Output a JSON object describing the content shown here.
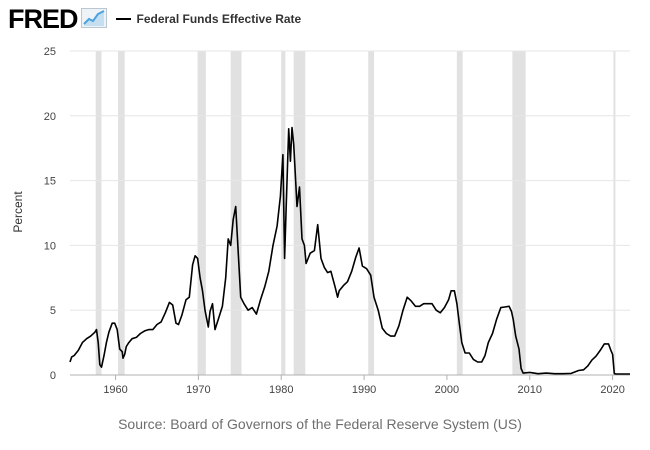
{
  "brand": {
    "name": "FRED",
    "logo_icon": "trend-graph-icon"
  },
  "source_text": "Source: Board of Governors of the Federal Reserve System (US)",
  "colors": {
    "series": "#000000",
    "recession": "#e1e1e1",
    "grid": "#e6e6e6",
    "accent": "#4aa3df"
  },
  "chart_data": {
    "type": "line",
    "title": "",
    "xlabel": "",
    "ylabel": "Percent",
    "xlim": [
      1954.5,
      2022.1
    ],
    "ylim": [
      0,
      25
    ],
    "yticks": [
      0,
      5,
      10,
      15,
      20,
      25
    ],
    "xticks": [
      1960,
      1970,
      1980,
      1990,
      2000,
      2010,
      2020
    ],
    "grid": "horizontal",
    "legend": "top-left",
    "recessions": [
      [
        1957.6,
        1958.3
      ],
      [
        1960.3,
        1961.1
      ],
      [
        1969.9,
        1970.9
      ],
      [
        1973.9,
        1975.2
      ],
      [
        1980.0,
        1980.5
      ],
      [
        1981.5,
        1982.9
      ],
      [
        1990.5,
        1991.2
      ],
      [
        2001.2,
        2001.9
      ],
      [
        2007.9,
        2009.5
      ],
      [
        2020.1,
        2020.3
      ]
    ],
    "series": [
      {
        "name": "Federal Funds Effective Rate",
        "x": [
          1954.5,
          1954.7,
          1955.0,
          1955.5,
          1956.0,
          1956.5,
          1957.0,
          1957.5,
          1957.7,
          1957.9,
          1958.1,
          1958.3,
          1958.6,
          1958.9,
          1959.2,
          1959.6,
          1959.9,
          1960.2,
          1960.5,
          1960.8,
          1960.9,
          1961.1,
          1961.3,
          1961.6,
          1962.0,
          1962.5,
          1963.0,
          1963.5,
          1964.0,
          1964.5,
          1965.0,
          1965.5,
          1966.0,
          1966.5,
          1966.9,
          1967.3,
          1967.6,
          1968.0,
          1968.5,
          1968.9,
          1969.3,
          1969.6,
          1969.9,
          1970.2,
          1970.5,
          1970.8,
          1971.2,
          1971.4,
          1971.7,
          1972.0,
          1972.5,
          1972.9,
          1973.3,
          1973.6,
          1973.9,
          1974.2,
          1974.5,
          1974.8,
          1975.1,
          1975.5,
          1976.0,
          1976.5,
          1977.0,
          1977.5,
          1978.0,
          1978.5,
          1979.0,
          1979.5,
          1979.9,
          1980.2,
          1980.4,
          1980.6,
          1980.9,
          1981.1,
          1981.3,
          1981.5,
          1981.7,
          1981.9,
          1982.2,
          1982.5,
          1982.8,
          1983.0,
          1983.5,
          1984.0,
          1984.4,
          1984.8,
          1985.2,
          1985.6,
          1986.0,
          1986.5,
          1986.8,
          1987.0,
          1987.5,
          1988.0,
          1988.5,
          1989.0,
          1989.4,
          1989.8,
          1990.3,
          1990.8,
          1991.2,
          1991.7,
          1992.2,
          1992.7,
          1993.2,
          1993.7,
          1994.2,
          1994.7,
          1995.2,
          1995.7,
          1996.2,
          1996.7,
          1997.2,
          1997.7,
          1998.2,
          1998.7,
          1999.2,
          1999.7,
          2000.2,
          2000.5,
          2000.9,
          2001.2,
          2001.5,
          2001.8,
          2002.2,
          2002.7,
          2003.2,
          2003.7,
          2004.2,
          2004.6,
          2005.0,
          2005.5,
          2006.0,
          2006.5,
          2007.0,
          2007.5,
          2007.8,
          2008.0,
          2008.3,
          2008.7,
          2008.95,
          2009.2,
          2010.0,
          2011.0,
          2012.0,
          2013.0,
          2014.0,
          2015.0,
          2015.9,
          2016.5,
          2017.0,
          2017.5,
          2018.0,
          2018.5,
          2019.0,
          2019.5,
          2019.8,
          2020.0,
          2020.2,
          2020.5,
          2021.0,
          2021.5,
          2022.1
        ],
        "y": [
          1.0,
          1.4,
          1.5,
          1.9,
          2.5,
          2.8,
          3.0,
          3.3,
          3.5,
          2.5,
          0.8,
          0.6,
          1.5,
          2.5,
          3.3,
          4.0,
          4.0,
          3.5,
          2.0,
          1.8,
          1.3,
          1.6,
          2.2,
          2.5,
          2.8,
          2.9,
          3.2,
          3.4,
          3.5,
          3.5,
          3.9,
          4.1,
          4.8,
          5.6,
          5.4,
          4.0,
          3.9,
          4.6,
          5.8,
          6.0,
          8.5,
          9.2,
          9.0,
          7.5,
          6.5,
          5.0,
          3.7,
          4.9,
          5.5,
          3.5,
          4.5,
          5.3,
          7.5,
          10.5,
          10.0,
          12.0,
          13.0,
          9.5,
          6.0,
          5.5,
          5.0,
          5.2,
          4.7,
          5.8,
          6.8,
          8.0,
          10.0,
          11.5,
          13.8,
          17.0,
          9.0,
          13.0,
          19.0,
          16.5,
          19.1,
          17.8,
          15.5,
          13.0,
          14.5,
          10.5,
          10.0,
          8.6,
          9.4,
          9.6,
          11.6,
          9.0,
          8.3,
          7.9,
          8.0,
          6.8,
          6.0,
          6.5,
          6.9,
          7.2,
          8.0,
          9.1,
          9.8,
          8.4,
          8.2,
          7.7,
          6.0,
          5.0,
          3.6,
          3.2,
          3.0,
          3.0,
          3.8,
          5.0,
          6.0,
          5.7,
          5.3,
          5.3,
          5.5,
          5.5,
          5.5,
          5.0,
          4.8,
          5.2,
          5.8,
          6.5,
          6.5,
          5.5,
          4.0,
          2.5,
          1.7,
          1.7,
          1.2,
          1.0,
          1.0,
          1.5,
          2.5,
          3.2,
          4.3,
          5.2,
          5.25,
          5.3,
          4.9,
          4.3,
          3.0,
          2.0,
          0.5,
          0.15,
          0.2,
          0.1,
          0.15,
          0.1,
          0.1,
          0.12,
          0.35,
          0.4,
          0.7,
          1.15,
          1.45,
          1.9,
          2.4,
          2.4,
          1.9,
          1.6,
          0.1,
          0.08,
          0.08,
          0.08,
          0.08
        ]
      }
    ]
  }
}
